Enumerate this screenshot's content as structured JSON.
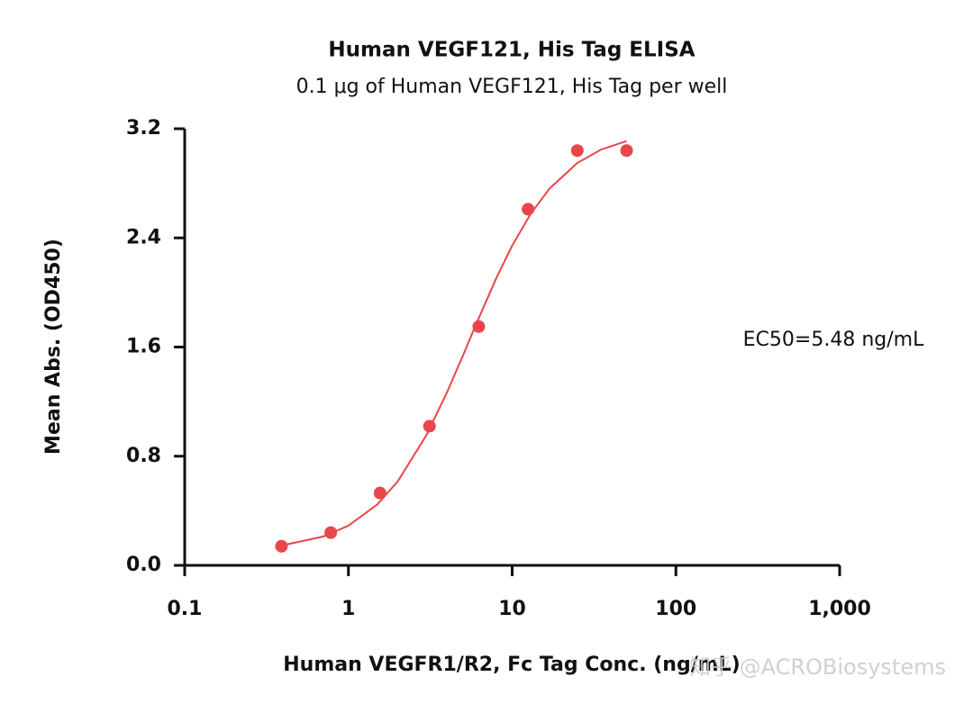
{
  "chart_data": {
    "type": "scatter",
    "title": "Human VEGF121, His Tag ELISA",
    "subtitle": "0.1 μg of Human VEGF121, His Tag per well",
    "x_label": "Human VEGFR1/R2, Fc Tag Conc. (ng/mL)",
    "y_label": "Mean Abs. (OD450)",
    "annotation": "EC50=5.48 ng/mL",
    "watermark": "知乎 @ACROBiosystems",
    "x_scale": "log",
    "color": "#e8464b",
    "x": [
      0.39,
      0.78,
      1.56,
      3.125,
      6.25,
      12.5,
      25,
      50
    ],
    "values": [
      0.14,
      0.24,
      0.53,
      1.02,
      1.75,
      2.61,
      3.04,
      3.04
    ],
    "fit": {
      "x": [
        0.39,
        0.7,
        1,
        1.5,
        2,
        3,
        4,
        5,
        6,
        8,
        10,
        13,
        17,
        25,
        35,
        50
      ],
      "values": [
        0.145,
        0.211,
        0.291,
        0.446,
        0.615,
        0.956,
        1.268,
        1.536,
        1.763,
        2.105,
        2.343,
        2.578,
        2.764,
        2.949,
        3.048,
        3.11
      ]
    },
    "xlim": [
      0.1,
      1000
    ],
    "xticks": [
      0.1,
      1,
      10,
      100,
      {
        "value": 1000,
        "label": "1,000"
      }
    ],
    "ylim": [
      0,
      3.2
    ],
    "yticks": [
      {
        "value": 0,
        "label": "0.0"
      },
      0.8,
      1.6,
      2.4,
      3.2
    ]
  }
}
